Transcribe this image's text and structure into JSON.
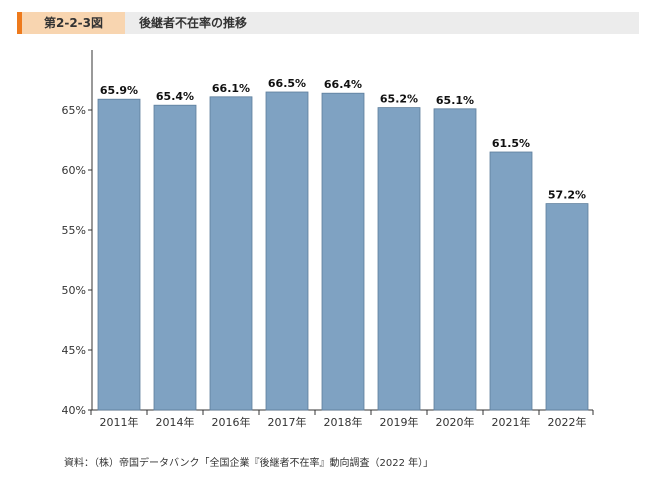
{
  "header": {
    "figure_label": "第2-2-3図",
    "title": "後継者不在率の推移"
  },
  "source_note": "資料：（株）帝国データバンク「全国企業『後継者不在率』動向調査（2022 年）」",
  "colors": {
    "bar": "#7fa2c2",
    "bar_border": "#5d7e9c",
    "accent": "#ee7a1c",
    "label_bg": "#f8d5b0",
    "header_bg": "#ececec"
  },
  "chart_data": {
    "type": "bar",
    "categories": [
      "2011年",
      "2014年",
      "2016年",
      "2017年",
      "2018年",
      "2019年",
      "2020年",
      "2021年",
      "2022年"
    ],
    "values": [
      65.9,
      65.4,
      66.1,
      66.5,
      66.4,
      65.2,
      65.1,
      61.5,
      57.2
    ],
    "data_labels": [
      "65.9%",
      "65.4%",
      "66.1%",
      "66.5%",
      "66.4%",
      "65.2%",
      "65.1%",
      "61.5%",
      "57.2%"
    ],
    "title": "",
    "xlabel": "",
    "ylabel": "",
    "ylim": [
      40,
      70
    ],
    "yticks": [
      40,
      45,
      50,
      55,
      60,
      65
    ],
    "ytick_labels": [
      "40%",
      "45%",
      "50%",
      "55%",
      "60%",
      "65%"
    ],
    "grid": false,
    "legend": false
  }
}
